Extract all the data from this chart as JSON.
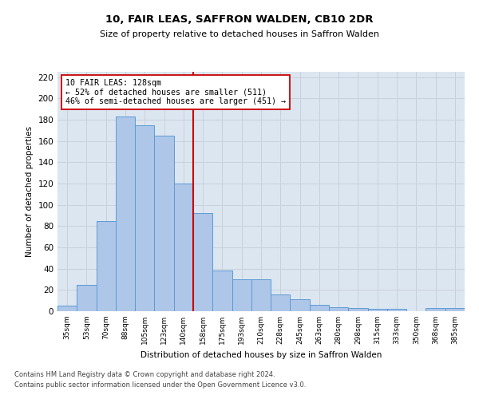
{
  "title1": "10, FAIR LEAS, SAFFRON WALDEN, CB10 2DR",
  "title2": "Size of property relative to detached houses in Saffron Walden",
  "xlabel": "Distribution of detached houses by size in Saffron Walden",
  "ylabel": "Number of detached properties",
  "bar_labels": [
    "35sqm",
    "53sqm",
    "70sqm",
    "88sqm",
    "105sqm",
    "123sqm",
    "140sqm",
    "158sqm",
    "175sqm",
    "193sqm",
    "210sqm",
    "228sqm",
    "245sqm",
    "263sqm",
    "280sqm",
    "298sqm",
    "315sqm",
    "333sqm",
    "350sqm",
    "368sqm",
    "385sqm"
  ],
  "bar_values": [
    5,
    25,
    85,
    183,
    175,
    165,
    120,
    92,
    38,
    30,
    30,
    16,
    11,
    6,
    4,
    3,
    2,
    2,
    0,
    3,
    3
  ],
  "bar_color": "#aec6e8",
  "bar_edge_color": "#5b9bd5",
  "annotation_text_line1": "10 FAIR LEAS: 128sqm",
  "annotation_text_line2": "← 52% of detached houses are smaller (511)",
  "annotation_text_line3": "46% of semi-detached houses are larger (451) →",
  "annotation_box_color": "#ffffff",
  "annotation_box_edge": "#cc0000",
  "red_line_color": "#cc0000",
  "grid_color": "#c8d0dc",
  "background_color": "#dce6f1",
  "footer_line1": "Contains HM Land Registry data © Crown copyright and database right 2024.",
  "footer_line2": "Contains public sector information licensed under the Open Government Licence v3.0.",
  "ylim": [
    0,
    225
  ],
  "yticks": [
    0,
    20,
    40,
    60,
    80,
    100,
    120,
    140,
    160,
    180,
    200,
    220
  ],
  "red_line_x": 6.5,
  "figsize": [
    6.0,
    5.0
  ],
  "dpi": 100
}
